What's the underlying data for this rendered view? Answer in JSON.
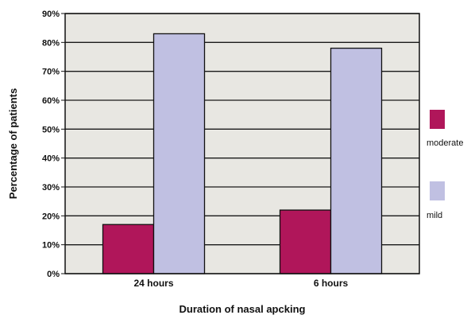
{
  "chart_data": {
    "type": "bar",
    "title": "",
    "xlabel": "Duration of nasal apcking",
    "ylabel": "Percentage of patients",
    "ylim": [
      0,
      90
    ],
    "yticks": [
      "0%",
      "10%",
      "20%",
      "30%",
      "40%",
      "50%",
      "60%",
      "70%",
      "80%",
      "90%"
    ],
    "categories": [
      "24 hours",
      "6 hours"
    ],
    "series": [
      {
        "name": "moderate",
        "values": [
          17,
          22
        ],
        "color": "#b0165a"
      },
      {
        "name": "mild",
        "values": [
          83,
          78
        ],
        "color": "#c0c0e2"
      }
    ],
    "grid": true,
    "legend_position": "right",
    "plot_background": "#e8e7e2"
  }
}
